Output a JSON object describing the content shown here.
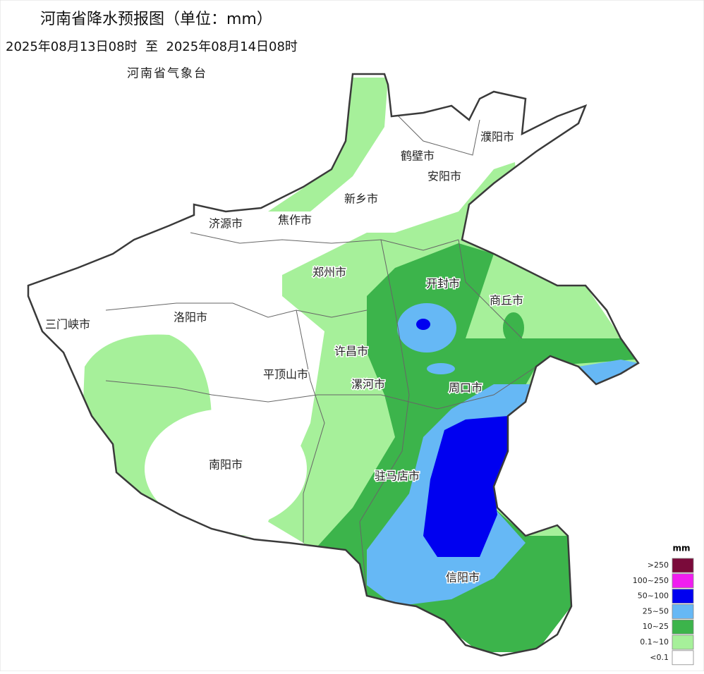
{
  "title": "河南省降水预报图（单位：mm）",
  "period": "2025年08月13日08时  至  2025年08月14日08时",
  "issuer": "河南省气象台",
  "cities": [
    "濮阳市",
    "鹤壁市",
    "安阳市",
    "新乡市",
    "济源市",
    "焦作市",
    "郑州市",
    "开封市",
    "商丘市",
    "三门峡市",
    "洛阳市",
    "许昌市",
    "平顶山市",
    "漯河市",
    "周口市",
    "南阳市",
    "驻马店市",
    "信阳市"
  ],
  "legend": {
    "title": "mm",
    "items": [
      {
        "label": ">250",
        "color": "#7a0a3a"
      },
      {
        "label": "100~250",
        "color": "#f01ef0"
      },
      {
        "label": "50~100",
        "color": "#0000f0"
      },
      {
        "label": "25~50",
        "color": "#66b8f5"
      },
      {
        "label": "10~25",
        "color": "#3cb44b"
      },
      {
        "label": "0.1~10",
        "color": "#a6f09a"
      },
      {
        "label": "<0.1",
        "color": "#ffffff"
      }
    ]
  }
}
